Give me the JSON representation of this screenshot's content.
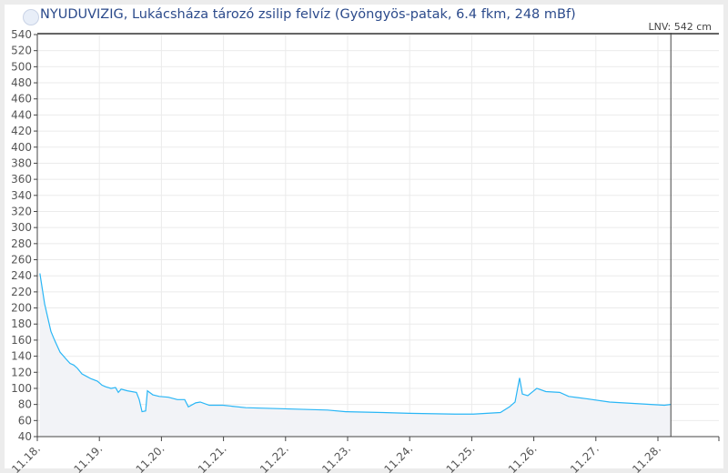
{
  "header": {
    "title": "NYUDUVIZIG, Lukácsháza tározó zsilip felvíz (Gyöngyös-patak, 6.4 fkm, 248 mBf)"
  },
  "chart_data": {
    "type": "area",
    "title": "NYUDUVIZIG, Lukácsháza tározó zsilip felvíz (Gyöngyös-patak, 6.4 fkm, 248 mBf)",
    "xlabel": "",
    "ylabel": "",
    "ylim": [
      40,
      540
    ],
    "yticks": [
      40,
      60,
      80,
      100,
      120,
      140,
      160,
      180,
      200,
      220,
      240,
      260,
      280,
      300,
      320,
      340,
      360,
      380,
      400,
      420,
      440,
      460,
      480,
      500,
      520,
      540
    ],
    "xticks": [
      "11.18.",
      "11.19.",
      "11.20.",
      "11.21.",
      "11.22.",
      "11.23.",
      "11.24.",
      "11.25.",
      "11.26.",
      "11.27.",
      "11.28."
    ],
    "grid": true,
    "line_color": "#29b6f6",
    "fill_color": "#f2f3f7",
    "reference_line": {
      "label": "LNV: 542 cm",
      "t": "11.28 05:00"
    },
    "series": [
      {
        "points": [
          [
            "11.18 01:00",
            243
          ],
          [
            "11.18 02:50",
            205
          ],
          [
            "11.18 05:15",
            171
          ],
          [
            "11.18 06:40",
            160
          ],
          [
            "11.18 08:48",
            145
          ],
          [
            "11.18 11:15",
            136
          ],
          [
            "11.18 12:40",
            131
          ],
          [
            "11.18 14:05",
            129
          ],
          [
            "11.18 15:30",
            125
          ],
          [
            "11.18 17:15",
            118
          ],
          [
            "11.18 19:00",
            115
          ],
          [
            "11.18 20:45",
            112
          ],
          [
            "11.18 23:15",
            109
          ],
          [
            "11.19 01:00",
            104
          ],
          [
            "11.19 02:25",
            102
          ],
          [
            "11.19 04:30",
            100
          ],
          [
            "11.19 06:15",
            101
          ],
          [
            "11.19 07:20",
            95
          ],
          [
            "11.19 08:25",
            99
          ],
          [
            "11.19 10:50",
            97
          ],
          [
            "11.19 14:20",
            95
          ],
          [
            "11.19 15:25",
            86
          ],
          [
            "11.19 16:30",
            71
          ],
          [
            "11.19 17:53",
            72
          ],
          [
            "11.19 18:35",
            97
          ],
          [
            "11.19 20:40",
            92
          ],
          [
            "11.19 23:10",
            90
          ],
          [
            "11.20 02:40",
            89
          ],
          [
            "11.20 06:10",
            86
          ],
          [
            "11.20 09:00",
            86
          ],
          [
            "11.20 10:25",
            77
          ],
          [
            "11.20 13:15",
            82
          ],
          [
            "11.20 15:00",
            83
          ],
          [
            "11.20 18:30",
            79
          ],
          [
            "11.20 23:50",
            79
          ],
          [
            "11.21 08:35",
            76
          ],
          [
            "11.21 19:10",
            75
          ],
          [
            "11.22 05:40",
            74
          ],
          [
            "11.22 16:15",
            73
          ],
          [
            "11.22 23:20",
            71
          ],
          [
            "11.23 13:25",
            70
          ],
          [
            "11.23 23:55",
            69
          ],
          [
            "11.24 17:30",
            68
          ],
          [
            "11.25 00:35",
            68
          ],
          [
            "11.25 11:05",
            70
          ],
          [
            "11.25 14:35",
            77
          ],
          [
            "11.25 16:45",
            83
          ],
          [
            "11.25 18:30",
            113
          ],
          [
            "11.25 19:35",
            93
          ],
          [
            "11.25 21:40",
            91
          ],
          [
            "11.26 01:10",
            100
          ],
          [
            "11.26 04:40",
            96
          ],
          [
            "11.26 10:00",
            95
          ],
          [
            "11.26 13:30",
            90
          ],
          [
            "11.26 20:35",
            87
          ],
          [
            "11.27 05:20",
            83
          ],
          [
            "11.27 15:55",
            81
          ],
          [
            "11.28 02:30",
            79
          ],
          [
            "11.28 05:00",
            80
          ]
        ]
      }
    ]
  }
}
